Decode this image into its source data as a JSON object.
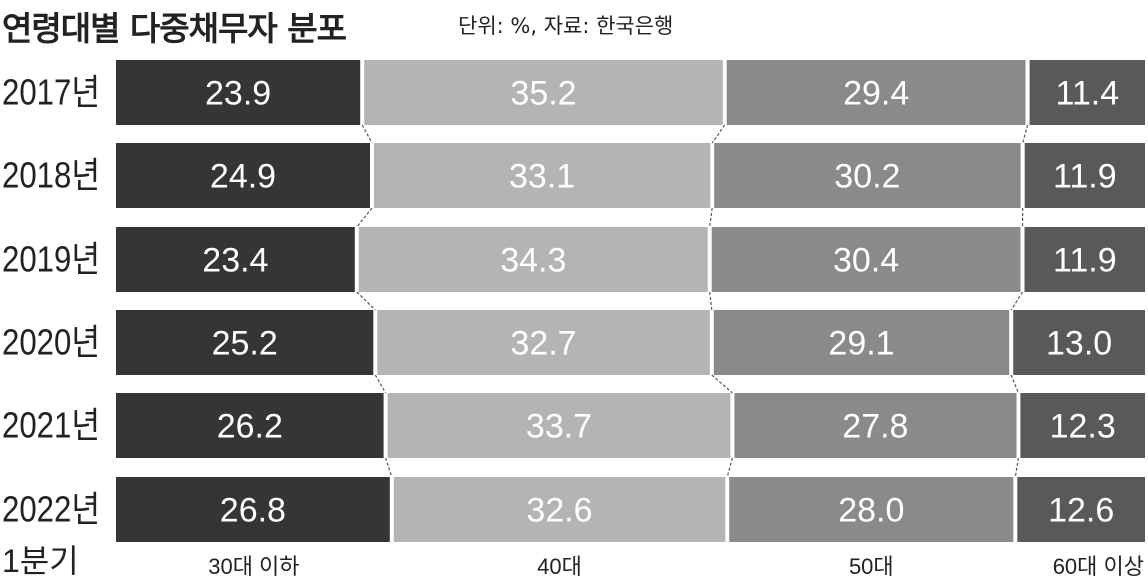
{
  "title": "연령대별 다중채무자 분포",
  "subtitle": "단위: %, 자료: 한국은행",
  "colors": {
    "age_30_under": "#353535",
    "age_40s": "#b4b4b4",
    "age_50s": "#8a8a8a",
    "age_60_over": "#595959",
    "label_on_dark": "#ffffff",
    "label_on_light": "#ffffff",
    "connector": "#555555",
    "text": "#222222"
  },
  "chart_data": {
    "type": "bar",
    "orientation": "horizontal",
    "stacked": true,
    "normalized_percent": true,
    "title": "연령대별 다중채무자 분포",
    "unit_note": "단위: %, 자료: 한국은행",
    "categories": [
      "2017년",
      "2018년",
      "2019년",
      "2020년",
      "2021년",
      "2022년 1분기"
    ],
    "series": [
      {
        "name": "30대 이하",
        "values": [
          23.9,
          24.9,
          23.4,
          25.2,
          26.2,
          26.8
        ]
      },
      {
        "name": "40대",
        "values": [
          35.2,
          33.1,
          34.3,
          32.7,
          33.7,
          32.6
        ]
      },
      {
        "name": "50대",
        "values": [
          29.4,
          30.2,
          30.4,
          29.1,
          27.8,
          28.0
        ]
      },
      {
        "name": "60대 이상",
        "values": [
          11.4,
          11.9,
          11.9,
          13.0,
          12.3,
          12.6
        ]
      }
    ],
    "legend_placement": "bottom",
    "grid": false,
    "connector_lines": true
  }
}
